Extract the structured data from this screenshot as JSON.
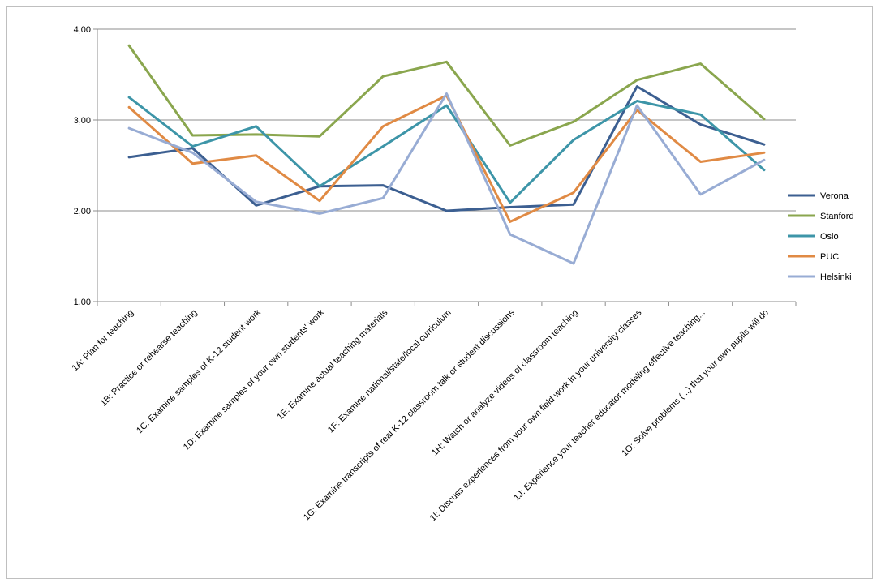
{
  "chart_data": {
    "type": "line",
    "title": "",
    "xlabel": "",
    "ylabel": "",
    "ylim": [
      1,
      4
    ],
    "yticks": [
      "1,00",
      "2,00",
      "3,00",
      "4,00"
    ],
    "ytick_values": [
      1,
      2,
      3,
      4
    ],
    "grid": true,
    "legend_position": "right",
    "categories": [
      "1A: Plan for teaching",
      "1B: Practice or rehearse teaching",
      "1C: Examine samples of K-12 student work",
      "1D: Examine samples of your own students' work",
      "1E: Examine actual teaching materials",
      "1F: Examine national/state/local curriculum",
      "1G: Examine transcripts of real K-12 classroom talk or student discussions",
      "1H: Watch or analyze videos of classroom teaching",
      "1I: Discuss experiences from your own field work in your university classes",
      "1J: Experience your teacher educator modeling effective teaching...",
      "1O: Solve problems (...) that your own pupils will do"
    ],
    "series": [
      {
        "name": "Verona",
        "color": "#3c5f91",
        "values": [
          2.59,
          2.69,
          2.06,
          2.27,
          2.28,
          2.0,
          2.04,
          2.07,
          3.37,
          2.95,
          2.73
        ]
      },
      {
        "name": "Stanford",
        "color": "#8aa64e",
        "values": [
          3.82,
          2.83,
          2.84,
          2.82,
          3.48,
          3.64,
          2.72,
          2.98,
          3.44,
          3.62,
          3.01
        ]
      },
      {
        "name": "Oslo",
        "color": "#3d95a8",
        "values": [
          3.25,
          2.71,
          2.93,
          2.27,
          2.71,
          3.16,
          2.09,
          2.78,
          3.21,
          3.06,
          2.45
        ]
      },
      {
        "name": "PUC",
        "color": "#e08a44",
        "values": [
          3.14,
          2.52,
          2.61,
          2.11,
          2.93,
          3.27,
          1.88,
          2.2,
          3.11,
          2.54,
          2.64
        ]
      },
      {
        "name": "Helsinki",
        "color": "#98acd4",
        "values": [
          2.91,
          2.64,
          2.1,
          1.97,
          2.14,
          3.29,
          1.74,
          1.42,
          3.16,
          2.18,
          2.56
        ]
      }
    ]
  }
}
